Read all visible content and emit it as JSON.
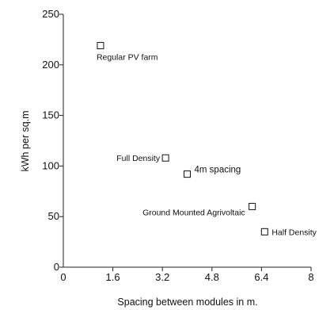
{
  "chart_data": {
    "type": "scatter",
    "xlabel": "Spacing between modules in m.",
    "ylabel": "kWh per sq.m",
    "xlim": [
      0,
      8
    ],
    "ylim": [
      0,
      250
    ],
    "x_ticks": [
      0,
      1.6,
      3.2,
      4.8,
      6.4,
      8
    ],
    "x_tick_labels": [
      "0",
      "1.6",
      "3.2",
      "4.8",
      "6.4",
      "8"
    ],
    "y_ticks": [
      0,
      50,
      100,
      150,
      200,
      250
    ],
    "y_tick_labels": [
      "0",
      "50",
      "100",
      "150",
      "200",
      "250"
    ],
    "grid": false,
    "marker": "open-square",
    "points": [
      {
        "label": "Regular PV farm",
        "x": 1.2,
        "y": 219
      },
      {
        "label": "Full Density",
        "x": 3.3,
        "y": 108
      },
      {
        "label": "4m spacing",
        "x": 4.0,
        "y": 92
      },
      {
        "label": "Ground Mounted Agrivoltaic",
        "x": 6.1,
        "y": 60
      },
      {
        "label": "Half Density",
        "x": 6.5,
        "y": 35
      }
    ]
  }
}
